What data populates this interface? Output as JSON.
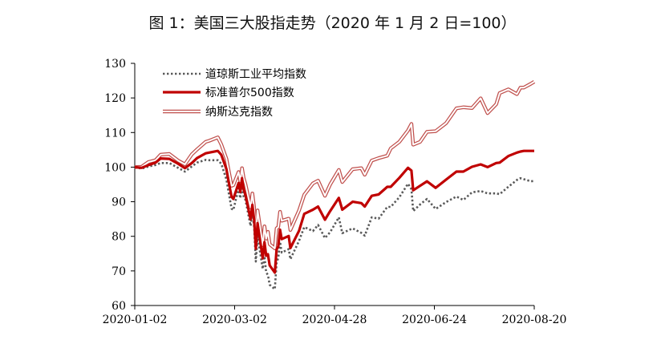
{
  "chart_data": {
    "type": "line",
    "title": "图 1：美国三大股指走势（2020 年 1 月 2 日=100）",
    "xlabel": "",
    "ylabel": "",
    "ylim": [
      60,
      130
    ],
    "yticks": [
      60,
      70,
      80,
      90,
      100,
      110,
      120,
      130
    ],
    "xlim": [
      "2020-01-02",
      "2020-08-20"
    ],
    "xtick_labels": [
      "2020-01-02",
      "2020-03-02",
      "2020-04-28",
      "2020-06-24",
      "2020-08-20"
    ],
    "grid": false,
    "legend_position": "top-left",
    "series": [
      {
        "name": "道琼斯工业平均指数",
        "color": "#5a5a5a",
        "style": "dotted",
        "points": [
          [
            "2020-01-02",
            100
          ],
          [
            "2020-01-06",
            99.6
          ],
          [
            "2020-01-10",
            100.2
          ],
          [
            "2020-01-14",
            100.6
          ],
          [
            "2020-01-17",
            101.2
          ],
          [
            "2020-01-22",
            101.2
          ],
          [
            "2020-01-27",
            99.8
          ],
          [
            "2020-01-31",
            98.7
          ],
          [
            "2020-02-04",
            100.2
          ],
          [
            "2020-02-07",
            101.3
          ],
          [
            "2020-02-12",
            102.1
          ],
          [
            "2020-02-14",
            102
          ],
          [
            "2020-02-19",
            102
          ],
          [
            "2020-02-21",
            101
          ],
          [
            "2020-02-24",
            96.4
          ],
          [
            "2020-02-25",
            93.5
          ],
          [
            "2020-02-27",
            88
          ],
          [
            "2020-02-28",
            87.6
          ],
          [
            "2020-03-02",
            93.9
          ],
          [
            "2020-03-03",
            91
          ],
          [
            "2020-03-04",
            95
          ],
          [
            "2020-03-05",
            91.4
          ],
          [
            "2020-03-06",
            90.5
          ],
          [
            "2020-03-09",
            83
          ],
          [
            "2020-03-10",
            87.2
          ],
          [
            "2020-03-11",
            82.8
          ],
          [
            "2020-03-12",
            72.7
          ],
          [
            "2020-03-13",
            80
          ],
          [
            "2020-03-16",
            70.6
          ],
          [
            "2020-03-17",
            74.2
          ],
          [
            "2020-03-18",
            69.6
          ],
          [
            "2020-03-19",
            68.8
          ],
          [
            "2020-03-20",
            66
          ],
          [
            "2020-03-23",
            64.7
          ],
          [
            "2020-03-24",
            72.3
          ],
          [
            "2020-03-25",
            73.8
          ],
          [
            "2020-03-26",
            78.4
          ],
          [
            "2020-03-27",
            75.3
          ],
          [
            "2020-03-31",
            76.3
          ],
          [
            "2020-04-01",
            73.4
          ],
          [
            "2020-04-06",
            78.7
          ],
          [
            "2020-04-09",
            82.7
          ],
          [
            "2020-04-14",
            81.5
          ],
          [
            "2020-04-17",
            83.3
          ],
          [
            "2020-04-21",
            79.5
          ],
          [
            "2020-04-24",
            81.2
          ],
          [
            "2020-04-29",
            85.5
          ],
          [
            "2020-05-01",
            80.9
          ],
          [
            "2020-05-07",
            82.3
          ],
          [
            "2020-05-12",
            81
          ],
          [
            "2020-05-14",
            80.2
          ],
          [
            "2020-05-18",
            85.5
          ],
          [
            "2020-05-22",
            85.1
          ],
          [
            "2020-05-27",
            88.5
          ],
          [
            "2020-05-29",
            88.5
          ],
          [
            "2020-06-03",
            91.3
          ],
          [
            "2020-06-08",
            95.2
          ],
          [
            "2020-06-10",
            93.6
          ],
          [
            "2020-06-11",
            87.3
          ],
          [
            "2020-06-15",
            89.2
          ],
          [
            "2020-06-19",
            90.8
          ],
          [
            "2020-06-24",
            87.9
          ],
          [
            "2020-06-30",
            89.9
          ],
          [
            "2020-07-06",
            91.5
          ],
          [
            "2020-07-10",
            90.5
          ],
          [
            "2020-07-15",
            92.7
          ],
          [
            "2020-07-20",
            93.1
          ],
          [
            "2020-07-24",
            92.4
          ],
          [
            "2020-07-29",
            92.4
          ],
          [
            "2020-07-31",
            92.2
          ],
          [
            "2020-08-05",
            94.3
          ],
          [
            "2020-08-10",
            96.3
          ],
          [
            "2020-08-12",
            96.8
          ],
          [
            "2020-08-14",
            96.5
          ],
          [
            "2020-08-18",
            95.9
          ],
          [
            "2020-08-20",
            96
          ]
        ]
      },
      {
        "name": "标准普尔500指数",
        "color": "#c00000",
        "style": "thick",
        "points": [
          [
            "2020-01-02",
            100
          ],
          [
            "2020-01-06",
            99.8
          ],
          [
            "2020-01-10",
            100.6
          ],
          [
            "2020-01-14",
            101.3
          ],
          [
            "2020-01-17",
            102.5
          ],
          [
            "2020-01-22",
            102.4
          ],
          [
            "2020-01-27",
            101
          ],
          [
            "2020-01-31",
            99.7
          ],
          [
            "2020-02-04",
            101.2
          ],
          [
            "2020-02-07",
            102.6
          ],
          [
            "2020-02-12",
            104
          ],
          [
            "2020-02-14",
            104.2
          ],
          [
            "2020-02-19",
            104.7
          ],
          [
            "2020-02-21",
            103.6
          ],
          [
            "2020-02-24",
            99.4
          ],
          [
            "2020-02-25",
            96.5
          ],
          [
            "2020-02-27",
            91.4
          ],
          [
            "2020-02-28",
            90.8
          ],
          [
            "2020-03-02",
            95.4
          ],
          [
            "2020-03-03",
            92.8
          ],
          [
            "2020-03-04",
            96.8
          ],
          [
            "2020-03-05",
            93.5
          ],
          [
            "2020-03-06",
            91.9
          ],
          [
            "2020-03-09",
            84.9
          ],
          [
            "2020-03-10",
            89.1
          ],
          [
            "2020-03-11",
            84.8
          ],
          [
            "2020-03-12",
            76.4
          ],
          [
            "2020-03-13",
            83.8
          ],
          [
            "2020-03-16",
            73.6
          ],
          [
            "2020-03-17",
            78.3
          ],
          [
            "2020-03-18",
            74.4
          ],
          [
            "2020-03-19",
            74.8
          ],
          [
            "2020-03-20",
            71.6
          ],
          [
            "2020-03-23",
            69.5
          ],
          [
            "2020-03-24",
            76.2
          ],
          [
            "2020-03-25",
            77.1
          ],
          [
            "2020-03-26",
            81.9
          ],
          [
            "2020-03-27",
            79.2
          ],
          [
            "2020-03-31",
            80.1
          ],
          [
            "2020-04-01",
            76.6
          ],
          [
            "2020-04-06",
            81.6
          ],
          [
            "2020-04-09",
            86.5
          ],
          [
            "2020-04-14",
            87.7
          ],
          [
            "2020-04-17",
            88.6
          ],
          [
            "2020-04-21",
            84.8
          ],
          [
            "2020-04-24",
            87.3
          ],
          [
            "2020-04-29",
            91.1
          ],
          [
            "2020-05-01",
            87.7
          ],
          [
            "2020-05-07",
            90
          ],
          [
            "2020-05-12",
            89.6
          ],
          [
            "2020-05-14",
            88.6
          ],
          [
            "2020-05-18",
            91.7
          ],
          [
            "2020-05-22",
            92.1
          ],
          [
            "2020-05-27",
            94.3
          ],
          [
            "2020-05-29",
            94.3
          ],
          [
            "2020-06-03",
            96.9
          ],
          [
            "2020-06-08",
            99.8
          ],
          [
            "2020-06-10",
            99
          ],
          [
            "2020-06-11",
            93.3
          ],
          [
            "2020-06-15",
            94.6
          ],
          [
            "2020-06-19",
            95.9
          ],
          [
            "2020-06-24",
            94
          ],
          [
            "2020-06-30",
            96.4
          ],
          [
            "2020-07-06",
            98.7
          ],
          [
            "2020-07-10",
            98.7
          ],
          [
            "2020-07-15",
            100.1
          ],
          [
            "2020-07-20",
            100.8
          ],
          [
            "2020-07-24",
            100
          ],
          [
            "2020-07-29",
            101.2
          ],
          [
            "2020-07-31",
            101.3
          ],
          [
            "2020-08-05",
            103.2
          ],
          [
            "2020-08-10",
            104.2
          ],
          [
            "2020-08-12",
            104.5
          ],
          [
            "2020-08-14",
            104.7
          ],
          [
            "2020-08-18",
            104.7
          ],
          [
            "2020-08-20",
            104.7
          ]
        ]
      },
      {
        "name": "纳斯达克指数",
        "color": "#c0504d",
        "style": "double",
        "points": [
          [
            "2020-01-02",
            100
          ],
          [
            "2020-01-06",
            100.1
          ],
          [
            "2020-01-10",
            101.5
          ],
          [
            "2020-01-14",
            102
          ],
          [
            "2020-01-17",
            103.6
          ],
          [
            "2020-01-22",
            103.8
          ],
          [
            "2020-01-27",
            101.9
          ],
          [
            "2020-01-31",
            100.8
          ],
          [
            "2020-02-04",
            103.7
          ],
          [
            "2020-02-07",
            105.1
          ],
          [
            "2020-02-12",
            107.3
          ],
          [
            "2020-02-14",
            107.6
          ],
          [
            "2020-02-19",
            108.6
          ],
          [
            "2020-02-21",
            106.6
          ],
          [
            "2020-02-24",
            102.4
          ],
          [
            "2020-02-25",
            99.8
          ],
          [
            "2020-02-27",
            94.6
          ],
          [
            "2020-02-28",
            94.8
          ],
          [
            "2020-03-02",
            98.6
          ],
          [
            "2020-03-03",
            95.9
          ],
          [
            "2020-03-04",
            99.7
          ],
          [
            "2020-03-05",
            96.8
          ],
          [
            "2020-03-06",
            95.1
          ],
          [
            "2020-03-09",
            88.3
          ],
          [
            "2020-03-10",
            92.4
          ],
          [
            "2020-03-11",
            88.4
          ],
          [
            "2020-03-12",
            80.1
          ],
          [
            "2020-03-13",
            87.5
          ],
          [
            "2020-03-16",
            77.4
          ],
          [
            "2020-03-17",
            82.9
          ],
          [
            "2020-03-18",
            79.3
          ],
          [
            "2020-03-19",
            81.3
          ],
          [
            "2020-03-20",
            77.7
          ],
          [
            "2020-03-23",
            76.5
          ],
          [
            "2020-03-24",
            82.3
          ],
          [
            "2020-03-25",
            82.7
          ],
          [
            "2020-03-26",
            87.1
          ],
          [
            "2020-03-27",
            84.5
          ],
          [
            "2020-03-31",
            85.1
          ],
          [
            "2020-04-01",
            81.8
          ],
          [
            "2020-04-06",
            87.5
          ],
          [
            "2020-04-09",
            92
          ],
          [
            "2020-04-14",
            95.3
          ],
          [
            "2020-04-17",
            96.1
          ],
          [
            "2020-04-21",
            91.7
          ],
          [
            "2020-04-24",
            95
          ],
          [
            "2020-04-29",
            99.2
          ],
          [
            "2020-05-01",
            95.7
          ],
          [
            "2020-05-07",
            99.4
          ],
          [
            "2020-05-12",
            99.7
          ],
          [
            "2020-05-14",
            97.8
          ],
          [
            "2020-05-18",
            101.9
          ],
          [
            "2020-05-22",
            102.6
          ],
          [
            "2020-05-27",
            103.3
          ],
          [
            "2020-05-29",
            105.4
          ],
          [
            "2020-06-03",
            107.3
          ],
          [
            "2020-06-08",
            110.6
          ],
          [
            "2020-06-10",
            112.5
          ],
          [
            "2020-06-11",
            106.5
          ],
          [
            "2020-06-15",
            107.3
          ],
          [
            "2020-06-19",
            110.2
          ],
          [
            "2020-06-24",
            110.4
          ],
          [
            "2020-06-30",
            112.7
          ],
          [
            "2020-07-06",
            117
          ],
          [
            "2020-07-10",
            117.3
          ],
          [
            "2020-07-15",
            117.1
          ],
          [
            "2020-07-20",
            119.9
          ],
          [
            "2020-07-24",
            115.6
          ],
          [
            "2020-07-29",
            118.2
          ],
          [
            "2020-07-31",
            121.4
          ],
          [
            "2020-08-05",
            122.5
          ],
          [
            "2020-08-10",
            121.1
          ],
          [
            "2020-08-12",
            123
          ],
          [
            "2020-08-14",
            123
          ],
          [
            "2020-08-18",
            124.1
          ],
          [
            "2020-08-20",
            124.7
          ]
        ]
      }
    ]
  }
}
